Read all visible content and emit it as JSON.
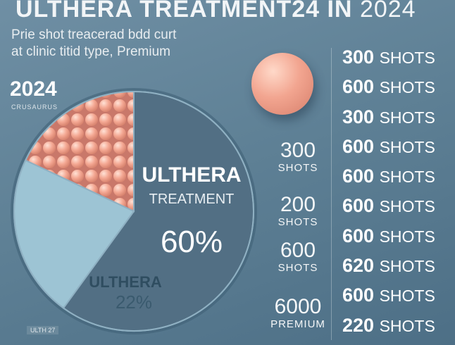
{
  "header": {
    "title": "ULTHERA TREATMENT24 IN",
    "title_year": "2024",
    "subtitle_line1": "Prie shot treacerad bdd curt",
    "subtitle_line2": "at clinic titid type, Premium"
  },
  "side": {
    "year": "2024",
    "year_caption": "CRUSAURUS"
  },
  "chart_data": {
    "type": "pie",
    "slices": [
      {
        "label": "ULTHERA TREATMENT",
        "value": 60,
        "value_label": "60%",
        "color": "#526f84"
      },
      {
        "label": "ULTHERA",
        "value": 22,
        "value_label": "22%",
        "color": "#9dc4d4"
      },
      {
        "label": "",
        "value": 18,
        "value_label": "",
        "color": "#f2a793"
      }
    ],
    "center_labels": {
      "big_name": "ULTHERA",
      "big_sub": "TREATMENT",
      "big_pct": "60%",
      "small_name": "ULTHERA",
      "small_pct": "22%"
    }
  },
  "middle_items": [
    {
      "value": "300",
      "unit": "SHOTS"
    },
    {
      "value": "200",
      "unit": "SHOTS"
    },
    {
      "value": "600",
      "unit": "SHOTS"
    },
    {
      "value": "6000",
      "unit": "PREMIUM"
    }
  ],
  "shots": [
    {
      "value": "300",
      "unit": "SHOTS"
    },
    {
      "value": "600",
      "unit": "SHOTS"
    },
    {
      "value": "300",
      "unit": "SHOTS"
    },
    {
      "value": "600",
      "unit": "SHOTS"
    },
    {
      "value": "600",
      "unit": "SHOTS"
    },
    {
      "value": "600",
      "unit": "SHOTS"
    },
    {
      "value": "600",
      "unit": "SHOTS"
    },
    {
      "value": "620",
      "unit": "SHOTS"
    },
    {
      "value": "600",
      "unit": "SHOTS"
    },
    {
      "value": "220",
      "unit": "SHOTS"
    }
  ],
  "footer": {
    "badge": "ULTH 27"
  }
}
